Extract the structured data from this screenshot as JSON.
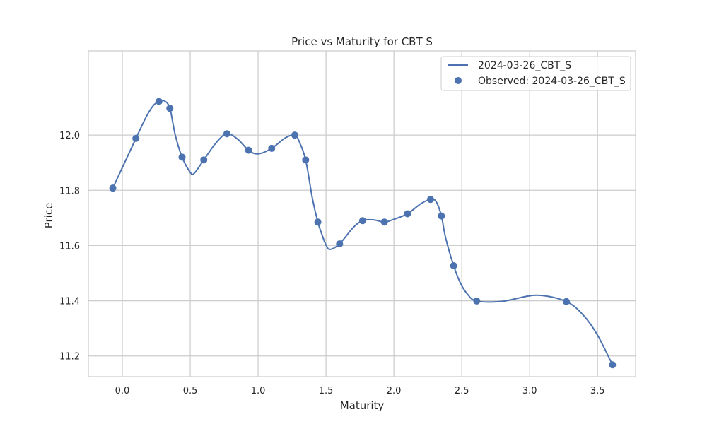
{
  "chart_data": {
    "type": "line",
    "title": "Price vs Maturity for CBT S",
    "xlabel": "Maturity",
    "ylabel": "Price",
    "xlim": [
      -0.25,
      3.78
    ],
    "ylim": [
      11.125,
      12.305
    ],
    "x_ticks": [
      0.0,
      0.5,
      1.0,
      1.5,
      2.0,
      2.5,
      3.0,
      3.5
    ],
    "x_tick_labels": [
      "0.0",
      "0.5",
      "1.0",
      "1.5",
      "2.0",
      "2.5",
      "3.0",
      "3.5"
    ],
    "y_ticks": [
      11.2,
      11.4,
      11.6,
      11.8,
      12.0
    ],
    "y_tick_labels": [
      "11.2",
      "11.4",
      "11.6",
      "11.8",
      "12.0"
    ],
    "grid": true,
    "legend_position": "top-right",
    "series": [
      {
        "name": "2024-03-26_CBT_S",
        "kind": "line",
        "color": "#4c72b0",
        "x": [
          -0.07,
          0.1,
          0.18,
          0.23,
          0.27,
          0.31,
          0.35,
          0.39,
          0.44,
          0.5,
          0.53,
          0.6,
          0.69,
          0.77,
          0.85,
          0.93,
          1.0,
          1.1,
          1.2,
          1.27,
          1.3,
          1.35,
          1.4,
          1.44,
          1.47,
          1.5,
          1.53,
          1.6,
          1.7,
          1.77,
          1.85,
          1.93,
          2.0,
          2.1,
          2.2,
          2.27,
          2.31,
          2.35,
          2.38,
          2.44,
          2.49,
          2.54,
          2.61,
          2.8,
          3.05,
          3.27,
          3.4,
          3.5,
          3.61
        ],
        "values": [
          11.808,
          11.988,
          12.07,
          12.108,
          12.122,
          12.124,
          12.097,
          12.0,
          11.92,
          11.865,
          11.862,
          11.91,
          11.972,
          12.005,
          11.985,
          11.945,
          11.932,
          11.952,
          11.99,
          12.0,
          11.98,
          11.91,
          11.77,
          11.685,
          11.64,
          11.602,
          11.586,
          11.606,
          11.665,
          11.69,
          11.693,
          11.685,
          11.695,
          11.715,
          11.752,
          11.767,
          11.76,
          11.707,
          11.63,
          11.527,
          11.464,
          11.425,
          11.399,
          11.398,
          11.42,
          11.397,
          11.345,
          11.275,
          11.168
        ]
      },
      {
        "name": "Observed: 2024-03-26_CBT_S",
        "kind": "scatter",
        "color": "#4c72b0",
        "x": [
          -0.07,
          0.1,
          0.27,
          0.35,
          0.44,
          0.6,
          0.77,
          0.93,
          1.1,
          1.27,
          1.35,
          1.44,
          1.6,
          1.77,
          1.93,
          2.1,
          2.27,
          2.35,
          2.44,
          2.61,
          3.27,
          3.61
        ],
        "values": [
          11.808,
          11.988,
          12.122,
          12.097,
          11.92,
          11.91,
          12.005,
          11.945,
          11.952,
          12.0,
          11.91,
          11.685,
          11.606,
          11.69,
          11.685,
          11.715,
          11.767,
          11.707,
          11.527,
          11.399,
          11.397,
          11.168
        ]
      }
    ]
  }
}
